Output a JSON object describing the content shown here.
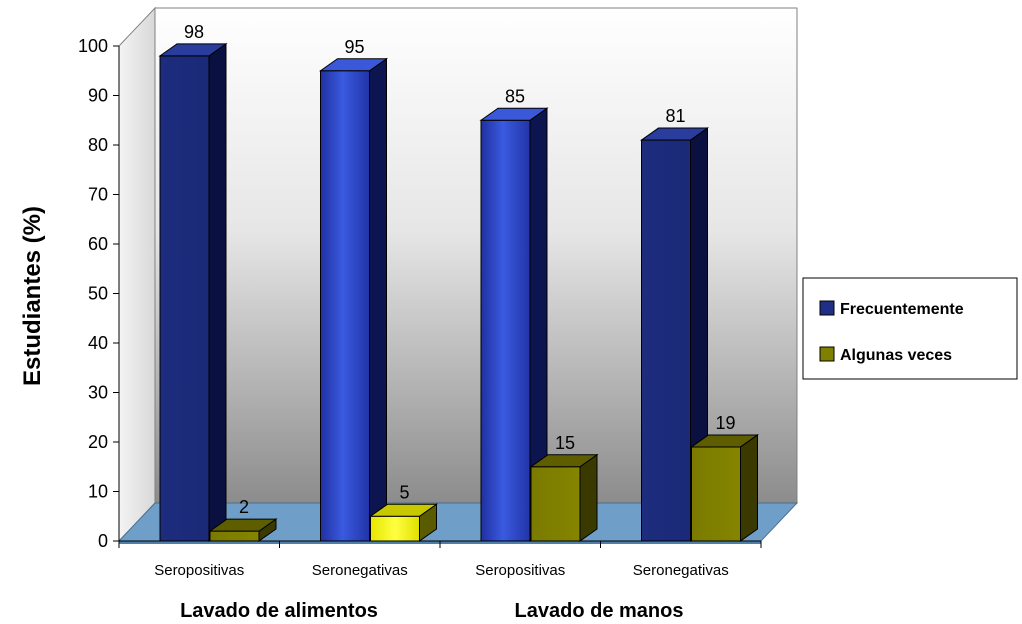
{
  "chart_data": {
    "type": "bar",
    "ylabel": "Estudiantes (%)",
    "ylim": [
      0,
      100
    ],
    "yticks": [
      0,
      10,
      20,
      30,
      40,
      50,
      60,
      70,
      80,
      90,
      100
    ],
    "categories": [
      "Seropositivas",
      "Seronegativas",
      "Seropositivas",
      "Seronegativas"
    ],
    "groups": [
      "Lavado de alimentos",
      "Lavado de manos"
    ],
    "series": [
      {
        "name": "Frecuentemente",
        "values": [
          98,
          95,
          85,
          81
        ]
      },
      {
        "name": "Algunas veces",
        "values": [
          2,
          5,
          15,
          19
        ]
      }
    ],
    "legend_position": "right",
    "colors": {
      "frecuentemente": "#1f2f86",
      "frecuentemente_highlight": "#2f4fd0",
      "algunas_veces": "#808000",
      "algunas_veces_highlight": "#ffff00",
      "floor": "#6f9fc8"
    }
  }
}
